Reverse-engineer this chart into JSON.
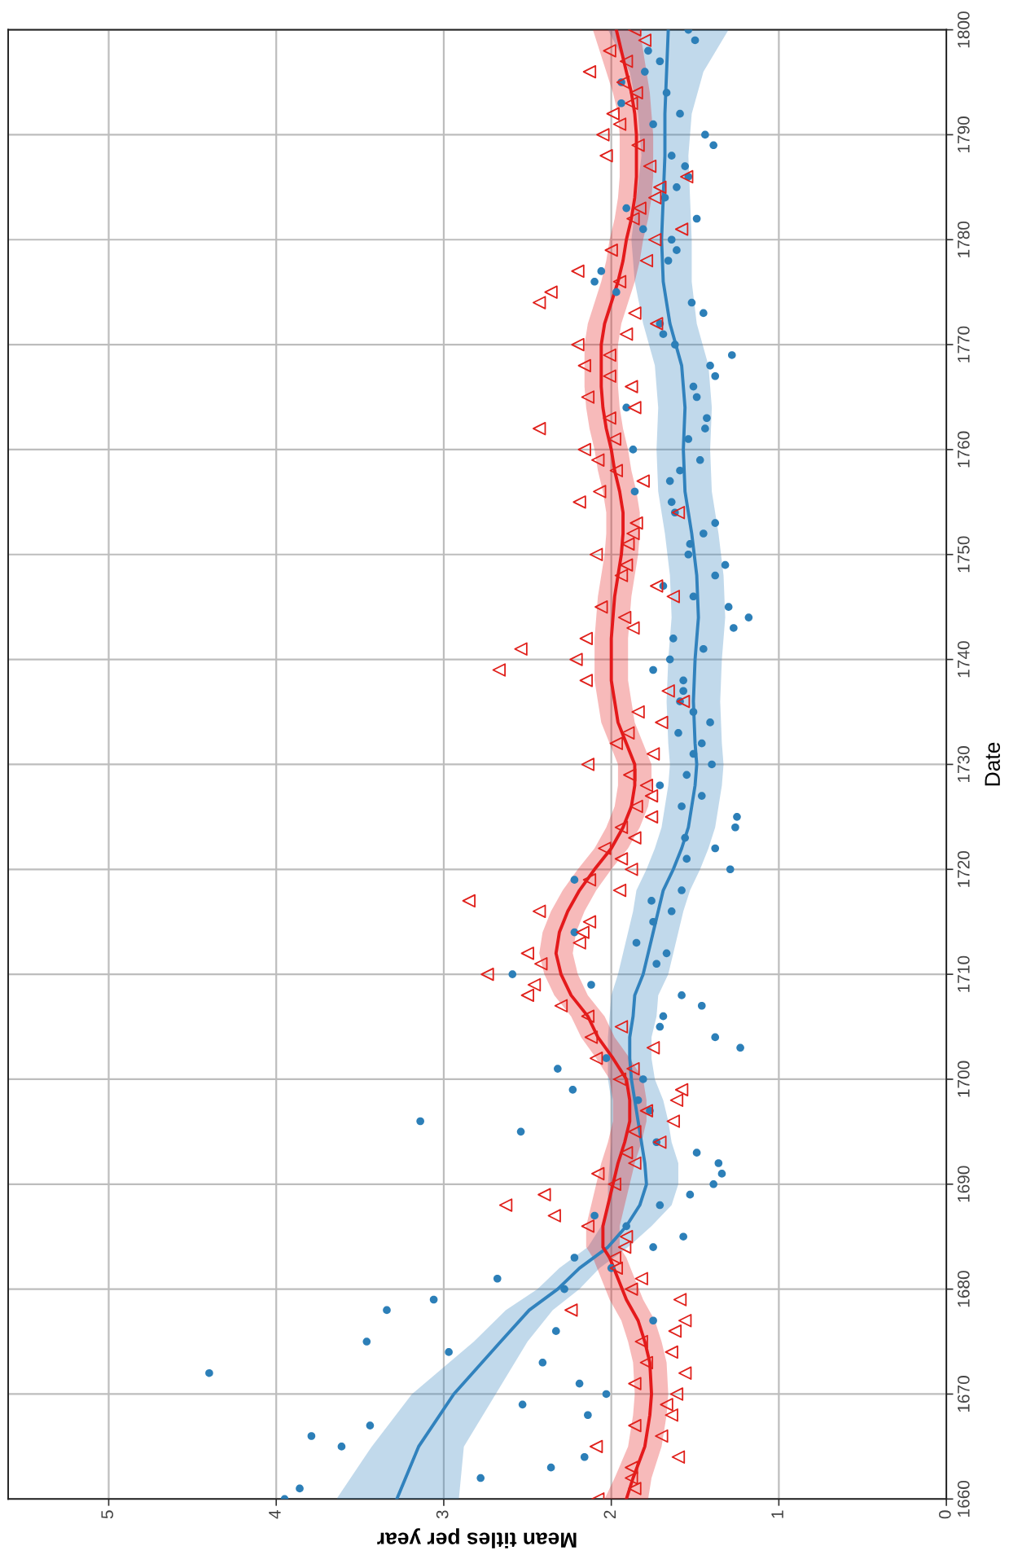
{
  "chart_data": {
    "type": "scatter",
    "orientation": "horizontal",
    "xlabel": "Mean titles per year",
    "ylabel": "Date",
    "ylim": [
      1660,
      1800
    ],
    "yticks": [
      1660,
      1670,
      1680,
      1690,
      1700,
      1710,
      1720,
      1730,
      1740,
      1750,
      1760,
      1770,
      1780,
      1790,
      1800
    ],
    "xlim": [
      5.6,
      0
    ],
    "xticks": [
      0,
      1,
      2,
      3,
      4,
      5
    ],
    "grid": true,
    "series": [
      {
        "color": "#2c7fb8",
        "marker": "circle",
        "x": [
          1660,
          1661,
          1662,
          1663,
          1664,
          1665,
          1666,
          1667,
          1668,
          1669,
          1670,
          1671,
          1672,
          1673,
          1674,
          1675,
          1676,
          1677,
          1678,
          1679,
          1680,
          1681,
          1682,
          1683,
          1684,
          1685,
          1686,
          1687,
          1688,
          1689,
          1690,
          1691,
          1692,
          1693,
          1694,
          1695,
          1696,
          1697,
          1698,
          1699,
          1700,
          1701,
          1702,
          1703,
          1704,
          1705,
          1706,
          1707,
          1708,
          1709,
          1710,
          1711,
          1712,
          1713,
          1714,
          1715,
          1716,
          1717,
          1718,
          1719,
          1720,
          1721,
          1722,
          1723,
          1724,
          1725,
          1726,
          1727,
          1728,
          1729,
          1730,
          1731,
          1732,
          1733,
          1734,
          1735,
          1736,
          1737,
          1738,
          1739,
          1740,
          1741,
          1742,
          1743,
          1744,
          1745,
          1746,
          1747,
          1748,
          1749,
          1750,
          1751,
          1752,
          1753,
          1754,
          1755,
          1756,
          1757,
          1758,
          1759,
          1760,
          1761,
          1762,
          1763,
          1764,
          1765,
          1766,
          1767,
          1768,
          1769,
          1770,
          1771,
          1772,
          1773,
          1774,
          1775,
          1776,
          1777,
          1778,
          1779,
          1780,
          1781,
          1782,
          1783,
          1784,
          1785,
          1786,
          1787,
          1788,
          1789,
          1790,
          1791,
          1792,
          1793,
          1794,
          1795,
          1796,
          1797,
          1798,
          1799,
          1800
        ],
        "values": [
          3.95,
          3.86,
          2.78,
          2.36,
          2.16,
          3.61,
          3.79,
          3.44,
          2.14,
          2.53,
          2.03,
          2.19,
          4.4,
          2.41,
          2.97,
          3.46,
          2.33,
          1.75,
          3.34,
          3.06,
          2.28,
          2.68,
          2.0,
          2.22,
          1.75,
          1.57,
          1.91,
          2.1,
          1.71,
          1.53,
          1.39,
          1.34,
          1.36,
          1.49,
          1.73,
          2.54,
          3.14,
          1.77,
          1.84,
          2.23,
          1.81,
          2.32,
          2.03,
          1.23,
          1.38,
          1.71,
          1.69,
          1.46,
          1.58,
          2.12,
          2.59,
          1.73,
          1.67,
          1.85,
          2.22,
          1.75,
          1.64,
          1.76,
          1.58,
          2.22,
          1.29,
          1.55,
          1.38,
          1.56,
          1.26,
          1.25,
          1.58,
          1.46,
          1.71,
          1.55,
          1.4,
          1.51,
          1.46,
          1.6,
          1.41,
          1.51,
          1.59,
          1.57,
          1.57,
          1.75,
          1.65,
          1.45,
          1.63,
          1.27,
          1.18,
          1.3,
          1.51,
          1.69,
          1.38,
          1.32,
          1.54,
          1.53,
          1.45,
          1.38,
          1.62,
          1.64,
          1.86,
          1.65,
          1.59,
          1.47,
          1.87,
          1.54,
          1.44,
          1.43,
          1.91,
          1.49,
          1.51,
          1.38,
          1.41,
          1.28,
          1.62,
          1.69,
          1.71,
          1.45,
          1.52,
          1.97,
          2.1,
          2.06,
          1.66,
          1.61,
          1.64,
          1.81,
          1.49,
          1.91,
          1.68,
          1.61,
          1.54,
          1.56,
          1.64,
          1.39,
          1.44,
          1.75,
          1.59,
          1.94,
          1.67,
          1.94,
          1.8,
          1.71,
          1.78,
          1.5,
          1.54
        ]
      },
      {
        "color": "#e0201b",
        "marker": "triangle",
        "x": [
          1660,
          1661,
          1662,
          1663,
          1664,
          1665,
          1666,
          1667,
          1668,
          1669,
          1670,
          1671,
          1672,
          1673,
          1674,
          1675,
          1676,
          1677,
          1678,
          1679,
          1680,
          1681,
          1682,
          1683,
          1684,
          1685,
          1686,
          1687,
          1688,
          1689,
          1690,
          1691,
          1692,
          1693,
          1694,
          1695,
          1696,
          1697,
          1698,
          1699,
          1700,
          1701,
          1702,
          1703,
          1704,
          1705,
          1706,
          1707,
          1708,
          1709,
          1710,
          1711,
          1712,
          1713,
          1714,
          1715,
          1716,
          1717,
          1718,
          1719,
          1720,
          1721,
          1722,
          1723,
          1724,
          1725,
          1726,
          1727,
          1728,
          1729,
          1730,
          1731,
          1732,
          1733,
          1734,
          1735,
          1736,
          1737,
          1738,
          1739,
          1740,
          1741,
          1742,
          1743,
          1744,
          1745,
          1746,
          1747,
          1748,
          1749,
          1750,
          1751,
          1752,
          1753,
          1754,
          1755,
          1756,
          1757,
          1758,
          1759,
          1760,
          1761,
          1762,
          1763,
          1764,
          1765,
          1766,
          1767,
          1768,
          1769,
          1770,
          1771,
          1772,
          1773,
          1774,
          1775,
          1776,
          1777,
          1778,
          1779,
          1780,
          1781,
          1782,
          1783,
          1784,
          1785,
          1786,
          1787,
          1788,
          1789,
          1790,
          1791,
          1792,
          1793,
          1794,
          1795,
          1796,
          1797,
          1798,
          1799,
          1800
        ],
        "values": [
          2.08,
          1.86,
          1.88,
          1.88,
          1.6,
          2.09,
          1.7,
          1.86,
          1.64,
          1.67,
          1.61,
          1.86,
          1.56,
          1.79,
          1.64,
          1.82,
          1.62,
          1.56,
          2.24,
          1.59,
          1.88,
          1.82,
          1.97,
          1.98,
          1.92,
          1.91,
          2.14,
          2.34,
          2.63,
          2.4,
          1.98,
          2.08,
          1.86,
          1.91,
          1.71,
          1.86,
          1.63,
          1.79,
          1.61,
          1.58,
          1.95,
          1.87,
          2.09,
          1.75,
          2.12,
          1.94,
          2.14,
          2.3,
          2.5,
          2.46,
          2.74,
          2.42,
          2.5,
          2.19,
          2.17,
          2.13,
          2.43,
          2.85,
          1.95,
          2.13,
          1.88,
          1.94,
          2.04,
          1.86,
          1.94,
          1.76,
          1.85,
          1.76,
          1.79,
          1.89,
          2.14,
          1.75,
          1.97,
          1.9,
          1.7,
          1.84,
          1.57,
          1.66,
          2.15,
          2.67,
          2.21,
          2.54,
          2.15,
          1.87,
          1.92,
          2.06,
          1.63,
          1.73,
          1.94,
          1.91,
          2.09,
          1.9,
          1.87,
          1.85,
          1.6,
          2.19,
          2.07,
          1.81,
          1.97,
          2.08,
          2.16,
          1.98,
          2.43,
          2.01,
          1.86,
          2.14,
          1.88,
          2.01,
          2.16,
          2.01,
          2.2,
          1.91,
          1.73,
          1.86,
          2.43,
          2.36,
          1.95,
          2.2,
          1.79,
          2.0,
          1.74,
          1.58,
          1.87,
          1.83,
          1.74,
          1.71,
          1.55,
          1.77,
          2.03,
          1.84,
          2.05,
          1.95,
          1.99,
          1.88,
          1.85,
          1.93,
          2.13,
          1.91,
          2.01,
          1.8,
          1.86
        ]
      },
      {
        "type": "line",
        "color": "#3182bd",
        "x": [
          1660,
          1665,
          1670,
          1675,
          1678,
          1680,
          1682,
          1684,
          1686,
          1688,
          1690,
          1692,
          1694,
          1696,
          1698,
          1700,
          1702,
          1704,
          1706,
          1708,
          1710,
          1712,
          1714,
          1716,
          1718,
          1720,
          1722,
          1724,
          1726,
          1728,
          1730,
          1732,
          1736,
          1740,
          1744,
          1748,
          1752,
          1756,
          1760,
          1764,
          1768,
          1772,
          1776,
          1780,
          1784,
          1788,
          1792,
          1796,
          1800
        ],
        "values": [
          3.28,
          3.15,
          2.94,
          2.66,
          2.49,
          2.32,
          2.19,
          2.02,
          1.91,
          1.83,
          1.79,
          1.8,
          1.82,
          1.84,
          1.86,
          1.88,
          1.89,
          1.89,
          1.87,
          1.86,
          1.81,
          1.78,
          1.75,
          1.72,
          1.69,
          1.63,
          1.58,
          1.54,
          1.52,
          1.5,
          1.49,
          1.5,
          1.51,
          1.5,
          1.48,
          1.49,
          1.52,
          1.56,
          1.57,
          1.56,
          1.58,
          1.65,
          1.69,
          1.7,
          1.69,
          1.68,
          1.68,
          1.67,
          1.66
        ],
        "lower": [
          2.91,
          2.88,
          2.69,
          2.5,
          2.35,
          2.19,
          2.07,
          1.9,
          1.76,
          1.64,
          1.6,
          1.6,
          1.64,
          1.66,
          1.69,
          1.74,
          1.76,
          1.76,
          1.73,
          1.72,
          1.66,
          1.63,
          1.6,
          1.57,
          1.53,
          1.47,
          1.42,
          1.38,
          1.36,
          1.34,
          1.33,
          1.34,
          1.35,
          1.34,
          1.32,
          1.33,
          1.36,
          1.4,
          1.41,
          1.4,
          1.42,
          1.49,
          1.52,
          1.52,
          1.53,
          1.54,
          1.52,
          1.45,
          1.3
        ],
        "upper": [
          3.64,
          3.43,
          3.19,
          2.82,
          2.63,
          2.44,
          2.31,
          2.14,
          2.06,
          2.02,
          2.02,
          2.01,
          2.0,
          2.0,
          2.0,
          2.02,
          2.02,
          2.02,
          2.01,
          2.0,
          1.96,
          1.93,
          1.9,
          1.87,
          1.85,
          1.79,
          1.74,
          1.7,
          1.68,
          1.66,
          1.65,
          1.66,
          1.67,
          1.66,
          1.64,
          1.65,
          1.68,
          1.72,
          1.73,
          1.72,
          1.74,
          1.81,
          1.86,
          1.88,
          1.85,
          1.82,
          1.84,
          1.89,
          2.02
        ]
      },
      {
        "type": "line",
        "color": "#e41a1c",
        "x": [
          1660,
          1662,
          1665,
          1668,
          1670,
          1673,
          1675,
          1677,
          1679,
          1681,
          1683,
          1684,
          1686,
          1688,
          1690,
          1692,
          1694,
          1696,
          1698,
          1700,
          1702,
          1704,
          1706,
          1708,
          1710,
          1712,
          1714,
          1716,
          1718,
          1720,
          1722,
          1724,
          1726,
          1728,
          1730,
          1732,
          1734,
          1736,
          1738,
          1740,
          1742,
          1744,
          1746,
          1748,
          1750,
          1752,
          1754,
          1756,
          1758,
          1760,
          1762,
          1764,
          1766,
          1768,
          1770,
          1772,
          1774,
          1776,
          1778,
          1780,
          1782,
          1784,
          1786,
          1788,
          1790,
          1792,
          1794,
          1796,
          1798,
          1800
        ],
        "values": [
          1.91,
          1.87,
          1.8,
          1.77,
          1.76,
          1.77,
          1.8,
          1.84,
          1.91,
          1.96,
          2.01,
          2.05,
          2.05,
          2.02,
          1.99,
          1.96,
          1.92,
          1.89,
          1.89,
          1.91,
          1.99,
          2.08,
          2.14,
          2.24,
          2.3,
          2.33,
          2.31,
          2.26,
          2.19,
          2.1,
          2.0,
          1.93,
          1.88,
          1.86,
          1.86,
          1.91,
          1.96,
          1.98,
          2.0,
          2.0,
          2.0,
          1.99,
          1.98,
          1.96,
          1.94,
          1.93,
          1.93,
          1.95,
          1.98,
          2.0,
          2.03,
          2.05,
          2.06,
          2.06,
          2.06,
          2.04,
          2.0,
          1.96,
          1.93,
          1.91,
          1.88,
          1.86,
          1.85,
          1.85,
          1.85,
          1.86,
          1.88,
          1.91,
          1.94,
          1.97
        ],
        "lower": [
          1.78,
          1.76,
          1.7,
          1.67,
          1.66,
          1.67,
          1.7,
          1.74,
          1.81,
          1.86,
          1.91,
          1.95,
          1.95,
          1.92,
          1.89,
          1.86,
          1.82,
          1.79,
          1.79,
          1.81,
          1.89,
          1.98,
          2.04,
          2.14,
          2.2,
          2.23,
          2.21,
          2.16,
          2.09,
          2.0,
          1.9,
          1.83,
          1.78,
          1.76,
          1.76,
          1.81,
          1.86,
          1.88,
          1.9,
          1.9,
          1.9,
          1.89,
          1.88,
          1.86,
          1.84,
          1.83,
          1.83,
          1.85,
          1.88,
          1.9,
          1.93,
          1.95,
          1.96,
          1.96,
          1.96,
          1.94,
          1.9,
          1.86,
          1.83,
          1.81,
          1.78,
          1.76,
          1.75,
          1.75,
          1.75,
          1.76,
          1.77,
          1.79,
          1.81,
          1.83
        ],
        "upper": [
          2.04,
          1.98,
          1.9,
          1.87,
          1.86,
          1.87,
          1.9,
          1.94,
          2.01,
          2.06,
          2.11,
          2.15,
          2.15,
          2.12,
          2.09,
          2.06,
          2.02,
          1.99,
          1.99,
          2.01,
          2.09,
          2.18,
          2.24,
          2.34,
          2.4,
          2.43,
          2.41,
          2.36,
          2.29,
          2.2,
          2.1,
          2.03,
          1.98,
          1.96,
          1.96,
          2.01,
          2.06,
          2.08,
          2.1,
          2.1,
          2.1,
          2.09,
          2.08,
          2.06,
          2.04,
          2.03,
          2.03,
          2.05,
          2.08,
          2.1,
          2.13,
          2.15,
          2.16,
          2.16,
          2.16,
          2.14,
          2.1,
          2.06,
          2.03,
          2.01,
          1.98,
          1.96,
          1.95,
          1.95,
          1.95,
          1.96,
          1.99,
          2.03,
          2.07,
          2.11
        ]
      }
    ]
  }
}
